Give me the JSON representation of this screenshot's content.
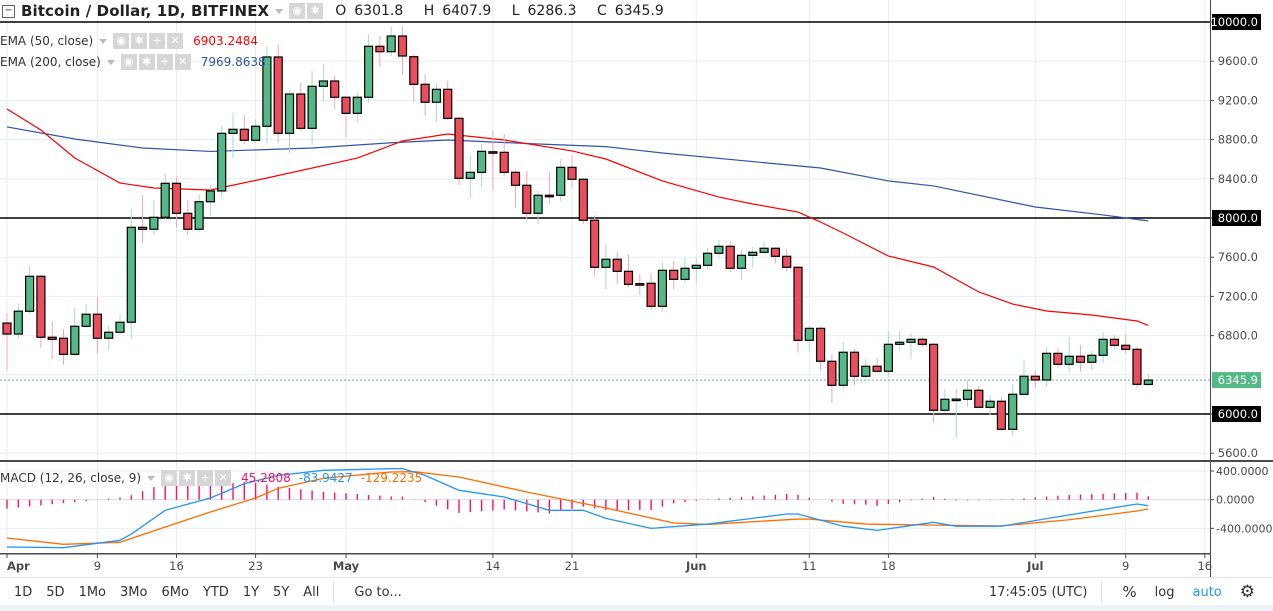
{
  "legend": {
    "symbol": "Bitcoin / Dollar, 1D, BITFINEX",
    "ohlc": {
      "o_label": "O",
      "o": "6301.8",
      "h_label": "H",
      "h": "6407.9",
      "l_label": "L",
      "l": "6286.3",
      "c_label": "C",
      "c": "6345.9"
    },
    "ema50": {
      "label": "EMA (50, close)",
      "value": "6903.2484",
      "color": "#ff0000"
    },
    "ema200": {
      "label": "EMA (200, close)",
      "value": "7969.8638",
      "color": "#2f54a8"
    },
    "macd": {
      "label": "MACD (12, 26, close, 9)",
      "hist": "45.2808",
      "macd": "-83.9427",
      "signal": "-129.2235"
    },
    "icons": [
      "eye-icon",
      "gear-icon",
      "plus-icon",
      "close-icon"
    ]
  },
  "colors": {
    "up": "#53b987",
    "down": "#eb4d5c",
    "up_wick": "#a8dcc0",
    "down_wick": "#f4a7ae",
    "macd": "#2196f3",
    "signal": "#ff6d00",
    "hist": "#ff0d6a",
    "grid": "#e6edf3",
    "last": "#53b987"
  },
  "toolbar": {
    "ranges": [
      "1D",
      "5D",
      "1Mo",
      "3Mo",
      "6Mo",
      "YTD",
      "1Y",
      "5Y",
      "All"
    ],
    "goto": "Go to...",
    "clock": "17:45:05 (UTC)",
    "percent": "%",
    "log": "log",
    "auto": "auto"
  },
  "chart_data": [
    {
      "type": "candlestick",
      "title": "Bitcoin / Dollar, 1D, BITFINEX",
      "ylim": [
        5500,
        10000
      ],
      "grid": true,
      "price_ticks": [
        "10000.0",
        "9600.0",
        "9200.0",
        "8800.0",
        "8400.0",
        "8000.0",
        "7600.0",
        "7200.0",
        "6800.0",
        "6000.0",
        "5600.0"
      ],
      "horizontal_lines": [
        10000,
        8000,
        6000
      ],
      "last_price": "6345.9",
      "x_ticks": [
        {
          "label": "Apr",
          "date": "Apr 1"
        },
        {
          "label": "9",
          "date": "Apr 9"
        },
        {
          "label": "16",
          "date": "Apr 16"
        },
        {
          "label": "23",
          "date": "Apr 23"
        },
        {
          "label": "May",
          "date": "May 1"
        },
        {
          "label": "14",
          "date": "May 14"
        },
        {
          "label": "21",
          "date": "May 21"
        },
        {
          "label": "Jun",
          "date": "Jun 1"
        },
        {
          "label": "11",
          "date": "Jun 11"
        },
        {
          "label": "18",
          "date": "Jun 18"
        },
        {
          "label": "Jul",
          "date": "Jul 1"
        },
        {
          "label": "9",
          "date": "Jul 9"
        },
        {
          "label": "16",
          "date": "Jul 16"
        }
      ],
      "candles_columns": [
        "date",
        "open",
        "high",
        "low",
        "close"
      ],
      "candles": [
        [
          "Apr 1",
          6928,
          7030,
          6449,
          6816
        ],
        [
          "Apr 2",
          6816,
          7130,
          6765,
          7049
        ],
        [
          "Apr 3",
          7048,
          7510,
          7027,
          7405
        ],
        [
          "Apr 4",
          7405,
          7418,
          6677,
          6783
        ],
        [
          "Apr 5",
          6783,
          6939,
          6561,
          6762
        ],
        [
          "Apr 6",
          6773,
          6867,
          6500,
          6609
        ],
        [
          "Apr 7",
          6609,
          7082,
          6590,
          6895
        ],
        [
          "Apr 8",
          6895,
          7122,
          6880,
          7018
        ],
        [
          "Apr 9",
          7018,
          7194,
          6622,
          6773
        ],
        [
          "Apr 10",
          6773,
          6898,
          6653,
          6834
        ],
        [
          "Apr 11",
          6834,
          7020,
          6806,
          6936
        ],
        [
          "Apr 12",
          6936,
          8092,
          6765,
          7905
        ],
        [
          "Apr 13",
          7905,
          8235,
          7745,
          7885
        ],
        [
          "Apr 14",
          7885,
          8184,
          7827,
          8007
        ],
        [
          "Apr 15",
          8007,
          8459,
          7990,
          8354
        ],
        [
          "Apr 16",
          8354,
          8421,
          7898,
          8048
        ],
        [
          "Apr 17",
          8048,
          8184,
          7827,
          7885
        ],
        [
          "Apr 18",
          7885,
          8240,
          7860,
          8166
        ],
        [
          "Apr 19",
          8166,
          8337,
          8031,
          8276
        ],
        [
          "Apr 20",
          8276,
          8939,
          8214,
          8864
        ],
        [
          "Apr 21",
          8864,
          9071,
          8612,
          8905
        ],
        [
          "Apr 22",
          8905,
          9051,
          8755,
          8793
        ],
        [
          "Apr 23",
          8793,
          9010,
          8765,
          8936
        ],
        [
          "Apr 24",
          8936,
          9748,
          8765,
          9643
        ],
        [
          "Apr 25",
          9643,
          9772,
          8768,
          8864
        ],
        [
          "Apr 26",
          8864,
          9306,
          8663,
          9265
        ],
        [
          "Apr 27",
          9265,
          9381,
          8891,
          8915
        ],
        [
          "Apr 28",
          8915,
          9500,
          8745,
          9344
        ],
        [
          "Apr 29",
          9344,
          9571,
          9187,
          9398
        ],
        [
          "Apr 30",
          9398,
          9449,
          9112,
          9232
        ],
        [
          "May 1",
          9232,
          9240,
          8823,
          9068
        ],
        [
          "May 2",
          9068,
          9279,
          8972,
          9232
        ],
        [
          "May 3",
          9232,
          9874,
          9173,
          9752
        ],
        [
          "May 4",
          9752,
          9857,
          9544,
          9697
        ],
        [
          "May 5",
          9697,
          9952,
          9650,
          9857
        ],
        [
          "May 6",
          9857,
          9952,
          9459,
          9653
        ],
        [
          "May 7",
          9646,
          9670,
          9187,
          9364
        ],
        [
          "May 8",
          9364,
          9466,
          9044,
          9181
        ],
        [
          "May 9",
          9181,
          9374,
          8983,
          9313
        ],
        [
          "May 10",
          9313,
          9398,
          9000,
          9017
        ],
        [
          "May 11",
          9017,
          9030,
          8337,
          8405
        ],
        [
          "May 12",
          8405,
          8633,
          8207,
          8466
        ],
        [
          "May 13",
          8466,
          8755,
          8320,
          8680
        ],
        [
          "May 14",
          8676,
          8888,
          8279,
          8673
        ],
        [
          "May 15",
          8670,
          8857,
          8422,
          8466
        ],
        [
          "May 16",
          8466,
          8490,
          8105,
          8334
        ],
        [
          "May 17",
          8334,
          8480,
          7990,
          8048
        ],
        [
          "May 18",
          8048,
          8276,
          7939,
          8232
        ],
        [
          "May 19",
          8232,
          8473,
          8143,
          8228
        ],
        [
          "May 20",
          8232,
          8602,
          8173,
          8517
        ],
        [
          "May 21",
          8517,
          8643,
          8309,
          8395
        ],
        [
          "May 22",
          8395,
          8408,
          7939,
          7977
        ],
        [
          "May 23",
          7977,
          8028,
          7401,
          7497
        ],
        [
          "May 24",
          7497,
          7735,
          7272,
          7579
        ],
        [
          "May 25",
          7579,
          7653,
          7323,
          7456
        ],
        [
          "May 26",
          7456,
          7622,
          7289,
          7323
        ],
        [
          "May 27",
          7330,
          7425,
          7214,
          7326
        ],
        [
          "May 28",
          7334,
          7439,
          7064,
          7099
        ],
        [
          "May 29",
          7099,
          7544,
          7044,
          7466
        ],
        [
          "May 30",
          7466,
          7561,
          7272,
          7374
        ],
        [
          "May 31",
          7374,
          7599,
          7334,
          7487
        ],
        [
          "Jun 1",
          7487,
          7599,
          7334,
          7517
        ],
        [
          "Jun 2",
          7517,
          7694,
          7476,
          7640
        ],
        [
          "Jun 3",
          7640,
          7776,
          7605,
          7711
        ],
        [
          "Jun 4",
          7711,
          7765,
          7449,
          7487
        ],
        [
          "Jun 5",
          7487,
          7673,
          7374,
          7619
        ],
        [
          "Jun 6",
          7619,
          7704,
          7493,
          7650
        ],
        [
          "Jun 7",
          7650,
          7752,
          7630,
          7691
        ],
        [
          "Jun 8",
          7691,
          7700,
          7538,
          7609
        ],
        [
          "Jun 9",
          7609,
          7681,
          7452,
          7497
        ],
        [
          "Jun 10",
          7497,
          7510,
          6626,
          6752
        ],
        [
          "Jun 11",
          6752,
          6898,
          6636,
          6874
        ],
        [
          "Jun 12",
          6874,
          6890,
          6442,
          6538
        ],
        [
          "Jun 13",
          6538,
          6609,
          6115,
          6293
        ],
        [
          "Jun 14",
          6293,
          6735,
          6252,
          6630
        ],
        [
          "Jun 15",
          6630,
          6663,
          6296,
          6385
        ],
        [
          "Jun 16",
          6385,
          6561,
          6330,
          6487
        ],
        [
          "Jun 17",
          6487,
          6571,
          6420,
          6436
        ],
        [
          "Jun 18",
          6436,
          6847,
          6374,
          6711
        ],
        [
          "Jun 19",
          6711,
          6847,
          6653,
          6732
        ],
        [
          "Jun 20",
          6732,
          6823,
          6564,
          6762
        ],
        [
          "Jun 21",
          6762,
          6789,
          6684,
          6711
        ],
        [
          "Jun 22",
          6711,
          6720,
          5911,
          6038
        ],
        [
          "Jun 23",
          6038,
          6255,
          6013,
          6150
        ],
        [
          "Jun 24",
          6150,
          6255,
          5758,
          6152
        ],
        [
          "Jun 25",
          6150,
          6347,
          6075,
          6242
        ],
        [
          "Jun 26",
          6242,
          6286,
          6060,
          6068
        ],
        [
          "Jun 27",
          6068,
          6194,
          5990,
          6130
        ],
        [
          "Jun 28",
          6130,
          6173,
          5830,
          5844
        ],
        [
          "Jun 29",
          5844,
          6303,
          5786,
          6201
        ],
        [
          "Jun 30",
          6201,
          6551,
          6190,
          6385
        ],
        [
          "Jul 1",
          6385,
          6439,
          6265,
          6347
        ],
        [
          "Jul 2",
          6347,
          6684,
          6279,
          6619
        ],
        [
          "Jul 3",
          6619,
          6670,
          6473,
          6507
        ],
        [
          "Jul 4",
          6507,
          6783,
          6422,
          6589
        ],
        [
          "Jul 5",
          6589,
          6704,
          6432,
          6528
        ],
        [
          "Jul 6",
          6528,
          6643,
          6449,
          6599
        ],
        [
          "Jul 7",
          6599,
          6834,
          6517,
          6762
        ],
        [
          "Jul 8",
          6762,
          6806,
          6667,
          6701
        ],
        [
          "Jul 9",
          6701,
          6813,
          6620,
          6660
        ],
        [
          "Jul 10",
          6660,
          6687,
          6268,
          6303
        ],
        [
          "Jul 11",
          6301.8,
          6407.9,
          6286.3,
          6345.9
        ]
      ],
      "ema50": [
        [
          "Apr 1",
          9112
        ],
        [
          "Apr 4",
          8898
        ],
        [
          "Apr 7",
          8612
        ],
        [
          "Apr 11",
          8357
        ],
        [
          "Apr 14",
          8306
        ],
        [
          "Apr 19",
          8286
        ],
        [
          "Apr 24",
          8408
        ],
        [
          "May 2",
          8612
        ],
        [
          "May 6",
          8786
        ],
        [
          "May 10",
          8857
        ],
        [
          "May 15",
          8796
        ],
        [
          "May 21",
          8684
        ],
        [
          "May 24",
          8602
        ],
        [
          "May 29",
          8378
        ],
        [
          "Jun 3",
          8214
        ],
        [
          "Jun 6",
          8143
        ],
        [
          "Jun 10",
          8061
        ],
        [
          "Jun 12",
          7959
        ],
        [
          "Jun 14",
          7847
        ],
        [
          "Jun 18",
          7612
        ],
        [
          "Jun 22",
          7500
        ],
        [
          "Jun 26",
          7245
        ],
        [
          "Jun 29",
          7122
        ],
        [
          "Jul 2",
          7051
        ],
        [
          "Jul 6",
          7010
        ],
        [
          "Jul 10",
          6949
        ],
        [
          "Jul 11",
          6903.2484
        ]
      ],
      "ema200": [
        [
          "Apr 1",
          8929
        ],
        [
          "Apr 7",
          8806
        ],
        [
          "Apr 13",
          8714
        ],
        [
          "Apr 19",
          8679
        ],
        [
          "Apr 28",
          8714
        ],
        [
          "May 5",
          8768
        ],
        [
          "May 10",
          8796
        ],
        [
          "May 18",
          8755
        ],
        [
          "May 24",
          8728
        ],
        [
          "May 29",
          8663
        ],
        [
          "Jun 12",
          8510
        ],
        [
          "Jun 18",
          8378
        ],
        [
          "Jun 22",
          8327
        ],
        [
          "Jul 1",
          8112
        ],
        [
          "Jul 7",
          8031
        ],
        [
          "Jul 11",
          7969.8638
        ]
      ]
    },
    {
      "type": "line",
      "title": "MACD (12, 26, close, 9)",
      "ylim": [
        -720,
        440
      ],
      "ticks": [
        "400.0000",
        "0.0000",
        "-400.0000"
      ],
      "tick_values": [
        400,
        0,
        -400
      ],
      "macd": [
        [
          "Apr 1",
          -660
        ],
        [
          "Apr 6",
          -670
        ],
        [
          "Apr 11",
          -567
        ],
        [
          "Apr 12",
          -480
        ],
        [
          "Apr 15",
          -148
        ],
        [
          "Apr 19",
          24
        ],
        [
          "Apr 22",
          223
        ],
        [
          "Apr 25",
          340
        ],
        [
          "Apr 29",
          410
        ],
        [
          "May 5",
          433
        ],
        [
          "May 6",
          433
        ],
        [
          "May 8",
          340
        ],
        [
          "May 11",
          131
        ],
        [
          "May 15",
          38
        ],
        [
          "May 19",
          -148
        ],
        [
          "May 22",
          -148
        ],
        [
          "May 24",
          -260
        ],
        [
          "May 28",
          -400
        ],
        [
          "Jun 2",
          -340
        ],
        [
          "Jun 9",
          -200
        ],
        [
          "Jun 10",
          -200
        ],
        [
          "Jun 14",
          -370
        ],
        [
          "Jun 17",
          -428
        ],
        [
          "Jun 22",
          -316
        ],
        [
          "Jun 24",
          -370
        ],
        [
          "Jun 28",
          -370
        ],
        [
          "Jul 4",
          -212
        ],
        [
          "Jul 10",
          -60
        ],
        [
          "Jul 11",
          -83.9427
        ]
      ],
      "signal": [
        [
          "Apr 1",
          -535
        ],
        [
          "Apr 6",
          -623
        ],
        [
          "Apr 11",
          -595
        ],
        [
          "Apr 15",
          -381
        ],
        [
          "Apr 19",
          -172
        ],
        [
          "Apr 23",
          24
        ],
        [
          "Apr 25",
          159
        ],
        [
          "Apr 29",
          299
        ],
        [
          "May 5",
          387
        ],
        [
          "May 7",
          391
        ],
        [
          "May 11",
          317
        ],
        [
          "May 17",
          108
        ],
        [
          "May 24",
          -116
        ],
        [
          "May 30",
          -325
        ],
        [
          "Jun 2",
          -345
        ],
        [
          "Jun 10",
          -270
        ],
        [
          "Jun 11",
          -270
        ],
        [
          "Jun 16",
          -340
        ],
        [
          "Jun 22",
          -355
        ],
        [
          "Jun 28",
          -365
        ],
        [
          "Jul 4",
          -280
        ],
        [
          "Jul 10",
          -158
        ],
        [
          "Jul 11",
          -129.2235
        ]
      ],
      "histogram": "macd - signal"
    }
  ]
}
